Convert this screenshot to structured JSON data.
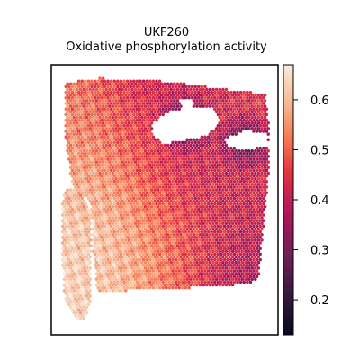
{
  "chart_data": {
    "type": "heatmap",
    "subtype": "spatial-spot-map",
    "title": "UKF260",
    "subtitle": "Oxidative phosphorylation activity",
    "xlabel": "",
    "ylabel": "",
    "colormap": "rocket",
    "colorbar": {
      "range": [
        0.13,
        0.67
      ],
      "ticks": [
        0.2,
        0.3,
        0.4,
        0.5,
        0.6
      ],
      "tick_labels": [
        "0.2",
        "0.3",
        "0.4",
        "0.5",
        "0.6"
      ]
    },
    "axes": {
      "x_ticks": false,
      "y_ticks": false,
      "grid": false
    },
    "regions": [
      {
        "name": "left-edge-strip",
        "level": 0.63
      },
      {
        "name": "left-lower-tissue",
        "level": 0.62
      },
      {
        "name": "upper-left-tissue",
        "level": 0.52
      },
      {
        "name": "upper-center-tissue",
        "level": 0.38
      },
      {
        "name": "upper-right-tissue",
        "level": 0.45
      },
      {
        "name": "center-tissue",
        "level": 0.35
      },
      {
        "name": "right-tissue",
        "level": 0.42
      },
      {
        "name": "lower-right-tissue",
        "level": 0.3
      },
      {
        "name": "lower-middle-tissue",
        "level": 0.5
      }
    ]
  }
}
